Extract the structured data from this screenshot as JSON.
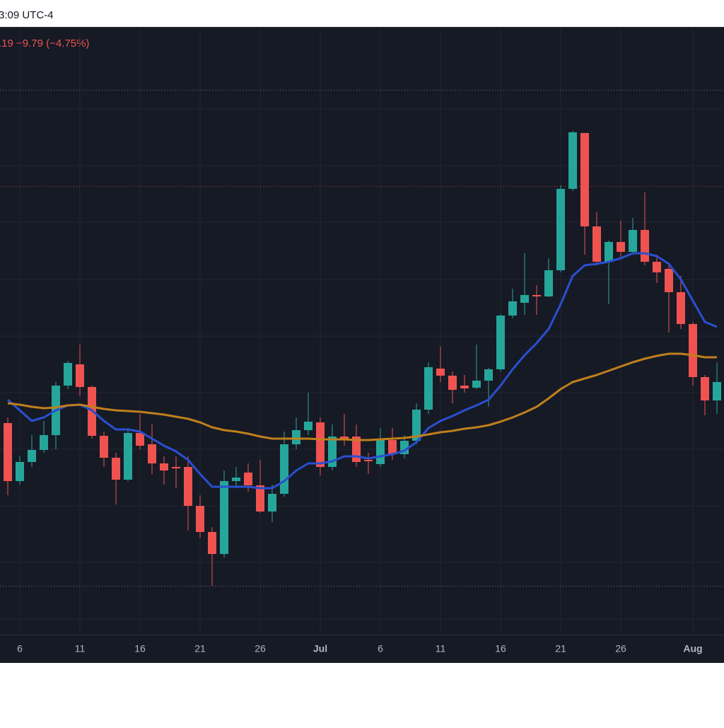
{
  "chart_data": {
    "type": "candlestick",
    "annotations": [
      "3:09 UTC-4",
      ".19 −9.79 (−4.75%)"
    ],
    "categories": [
      null,
      "6",
      null,
      null,
      null,
      null,
      "11",
      null,
      null,
      null,
      null,
      "16",
      null,
      null,
      null,
      null,
      "21",
      null,
      null,
      null,
      null,
      "26",
      null,
      null,
      null,
      null,
      "Jul",
      null,
      null,
      null,
      null,
      "6",
      null,
      null,
      null,
      null,
      "11",
      null,
      null,
      null,
      null,
      "16",
      null,
      null,
      null,
      null,
      "21",
      null,
      null,
      null,
      null,
      "26",
      null,
      null,
      null,
      null,
      null,
      "Aug",
      null,
      null
    ],
    "open": [
      402,
      320,
      347,
      364,
      385,
      455,
      485,
      453,
      384,
      353,
      322,
      388,
      372,
      345,
      340,
      340,
      285,
      248,
      217,
      320,
      332,
      314,
      277,
      302,
      372,
      392,
      403,
      340,
      383,
      383,
      350,
      344,
      378,
      358,
      377,
      421,
      479,
      469,
      455,
      452,
      462,
      478,
      554,
      572,
      583,
      581,
      618,
      733,
      812,
      680,
      630,
      658,
      644,
      675,
      630,
      620,
      587,
      542,
      467,
      434
    ],
    "high": [
      410,
      355,
      385,
      405,
      460,
      490,
      513,
      455,
      390,
      360,
      395,
      415,
      400,
      355,
      355,
      355,
      300,
      255,
      335,
      340,
      345,
      350,
      315,
      390,
      410,
      445,
      410,
      400,
      415,
      400,
      360,
      395,
      395,
      385,
      430,
      488,
      510,
      475,
      470,
      513,
      480,
      556,
      592,
      642,
      597,
      635,
      738,
      815,
      812,
      700,
      660,
      688,
      692,
      728,
      640,
      625,
      610,
      545,
      470,
      488
    ],
    "low": [
      300,
      315,
      340,
      360,
      365,
      450,
      440,
      380,
      340,
      287,
      320,
      365,
      330,
      315,
      310,
      250,
      240,
      172,
      212,
      310,
      305,
      275,
      262,
      298,
      365,
      385,
      328,
      335,
      370,
      340,
      330,
      340,
      350,
      352,
      372,
      415,
      460,
      430,
      445,
      450,
      425,
      475,
      550,
      555,
      555,
      580,
      615,
      730,
      640,
      625,
      570,
      635,
      640,
      625,
      600,
      530,
      535,
      455,
      413,
      415
    ],
    "close": [
      320,
      347,
      364,
      385,
      455,
      487,
      453,
      384,
      353,
      322,
      388,
      370,
      345,
      335,
      338,
      285,
      248,
      217,
      320,
      325,
      314,
      277,
      302,
      372,
      392,
      404,
      340,
      383,
      380,
      347,
      348,
      379,
      358,
      377,
      421,
      481,
      469,
      449,
      451,
      462,
      478,
      554,
      574,
      583,
      581,
      618,
      733,
      813,
      680,
      630,
      658,
      644,
      675,
      630,
      615,
      587,
      542,
      467,
      434,
      460
    ],
    "up_color": "#26a69a",
    "down_color": "#ef5350",
    "lines": [
      {
        "color": "#2a4fd0",
        "values": [
          435,
          420,
          405,
          410,
          420,
          427,
          428,
          420,
          405,
          393,
          393,
          390,
          380,
          370,
          362,
          350,
          330,
          312,
          312,
          312,
          312,
          310,
          310,
          320,
          335,
          345,
          345,
          348,
          355,
          355,
          352,
          355,
          358,
          363,
          375,
          395,
          405,
          412,
          420,
          427,
          435,
          455,
          478,
          498,
          515,
          535,
          570,
          610,
          625,
          627,
          630,
          635,
          642,
          642,
          638,
          627,
          605,
          575,
          545,
          538
        ]
      },
      {
        "color": "#c07f1c",
        "values": [
          430,
          428,
          425,
          423,
          424,
          427,
          428,
          425,
          422,
          420,
          419,
          418,
          416,
          414,
          411,
          408,
          403,
          396,
          392,
          390,
          387,
          383,
          380,
          380,
          380,
          380,
          379,
          379,
          379,
          378,
          378,
          379,
          380,
          381,
          383,
          386,
          389,
          391,
          394,
          396,
          399,
          404,
          410,
          417,
          425,
          437,
          450,
          460,
          465,
          470,
          476,
          482,
          488,
          493,
          497,
          500,
          500,
          498,
          495,
          495
        ]
      }
    ],
    "reference_lines": [
      {
        "value": 873,
        "color": "#70747e"
      },
      {
        "value": 737,
        "color": "#b0463f"
      },
      {
        "value": 172,
        "color": "#70747e"
      }
    ],
    "ylim": [
      103,
      960
    ],
    "grid": true
  }
}
